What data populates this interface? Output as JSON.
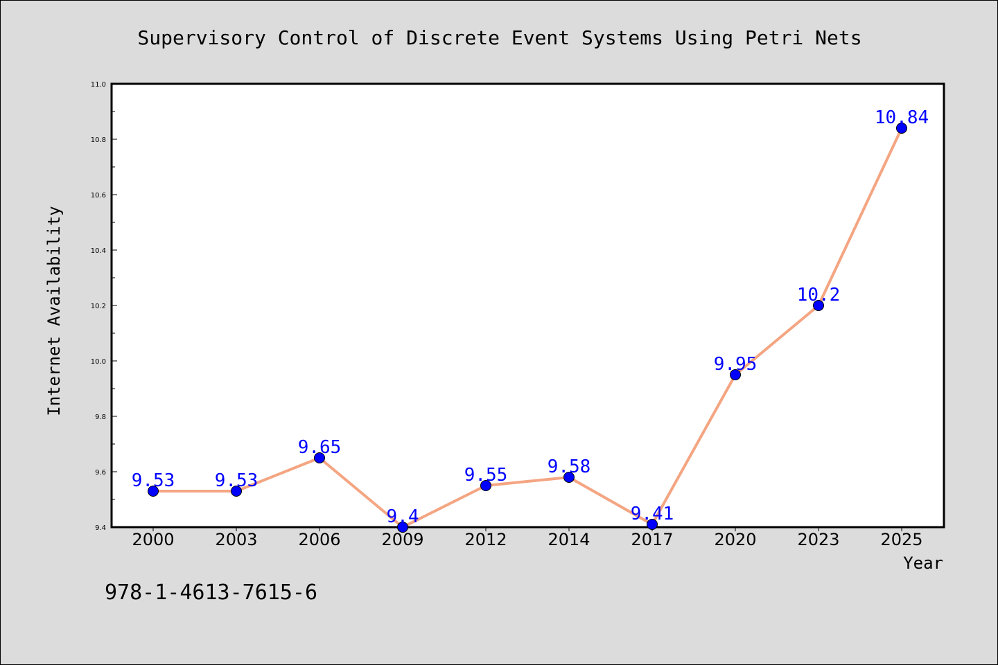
{
  "chart_data": {
    "type": "line",
    "title": "Supervisory Control of Discrete Event Systems Using Petri Nets",
    "xlabel": "Year",
    "ylabel": "Internet Availability",
    "categories": [
      "2000",
      "2003",
      "2006",
      "2009",
      "2012",
      "2014",
      "2017",
      "2020",
      "2023",
      "2025"
    ],
    "values": [
      9.53,
      9.53,
      9.65,
      9.4,
      9.55,
      9.58,
      9.41,
      9.95,
      10.2,
      10.84
    ],
    "data_labels": [
      "9.53",
      "9.53",
      "9.65",
      "9.4",
      "9.55",
      "9.58",
      "9.41",
      "9.95",
      "10.2",
      "10.84"
    ],
    "ylim": [
      9.4,
      11.0
    ],
    "yticks": [
      "9.4",
      "9.6",
      "9.8",
      "10.0",
      "10.2",
      "10.4",
      "10.6",
      "10.8",
      "11.0"
    ],
    "grid": false,
    "line_color": "#f4a582",
    "marker_color": "#0000ff",
    "label_color": "#0000ff"
  },
  "annotation": "978-1-4613-7615-6"
}
